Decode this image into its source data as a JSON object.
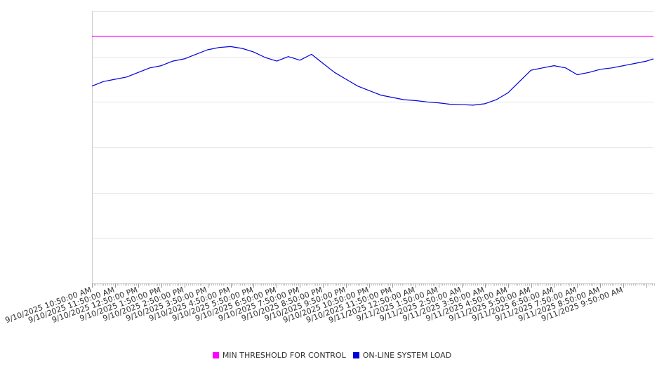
{
  "chart_data": {
    "type": "line",
    "title": "",
    "xlabel": "",
    "ylabel": "",
    "grid": true,
    "legend_placement": "bottom-center",
    "x_start": "9/10/2025 10:50:00 AM",
    "x_step_minutes": 60,
    "x_tick_labels": [
      "9/10/2025 10:50:00 AM",
      "9/10/2025 11:50:00 AM",
      "9/10/2025 12:50:00 PM",
      "9/10/2025 1:50:00 PM",
      "9/10/2025 2:50:00 PM",
      "9/10/2025 3:50:00 PM",
      "9/10/2025 4:50:00 PM",
      "9/10/2025 5:50:00 PM",
      "9/10/2025 6:50:00 PM",
      "9/10/2025 7:50:00 PM",
      "9/10/2025 8:50:00 PM",
      "9/10/2025 9:50:00 PM",
      "9/10/2025 10:50:00 PM",
      "9/10/2025 11:50:00 PM",
      "9/11/2025 12:50:00 AM",
      "9/11/2025 1:50:00 AM",
      "9/11/2025 2:50:00 AM",
      "9/11/2025 3:50:00 AM",
      "9/11/2025 4:50:00 AM",
      "9/11/2025 5:50:00 AM",
      "9/11/2025 6:50:00 AM",
      "9/11/2025 7:50:00 AM",
      "9/11/2025 8:50:00 AM",
      "9/11/2025 9:50:00 AM"
    ],
    "ylim": [
      0,
      6
    ],
    "y_gridlines": [
      0,
      1,
      2,
      3,
      4,
      5,
      6
    ],
    "series": [
      {
        "name": "MIN THRESHOLD FOR CONTROL",
        "color": "#ff00ff",
        "x_hours": [
          0,
          24.3
        ],
        "values": [
          5.45,
          5.45
        ]
      },
      {
        "name": "ON-LINE SYSTEM LOAD",
        "color": "#0000dd",
        "x_hours": [
          0,
          0.5,
          1,
          1.5,
          2,
          2.5,
          3,
          3.5,
          4,
          4.5,
          5,
          5.5,
          6,
          6.5,
          7,
          7.5,
          8,
          8.5,
          9,
          9.5,
          10,
          10.5,
          11,
          11.5,
          12,
          12.5,
          13,
          13.5,
          14,
          14.5,
          15,
          15.5,
          16,
          16.5,
          17,
          17.5,
          18,
          18.5,
          19,
          19.5,
          20,
          20.5,
          21,
          21.5,
          22,
          22.5,
          23,
          23.5,
          24,
          24.3
        ],
        "values": [
          4.35,
          4.45,
          4.5,
          4.55,
          4.65,
          4.75,
          4.8,
          4.9,
          4.95,
          5.05,
          5.15,
          5.2,
          5.22,
          5.18,
          5.1,
          4.98,
          4.9,
          5.0,
          4.92,
          5.05,
          4.85,
          4.65,
          4.5,
          4.35,
          4.25,
          4.15,
          4.1,
          4.05,
          4.03,
          4.0,
          3.98,
          3.95,
          3.94,
          3.93,
          3.96,
          4.05,
          4.2,
          4.45,
          4.7,
          4.75,
          4.8,
          4.75,
          4.6,
          4.65,
          4.72,
          4.75,
          4.8,
          4.85,
          4.9,
          4.95
        ]
      }
    ]
  }
}
